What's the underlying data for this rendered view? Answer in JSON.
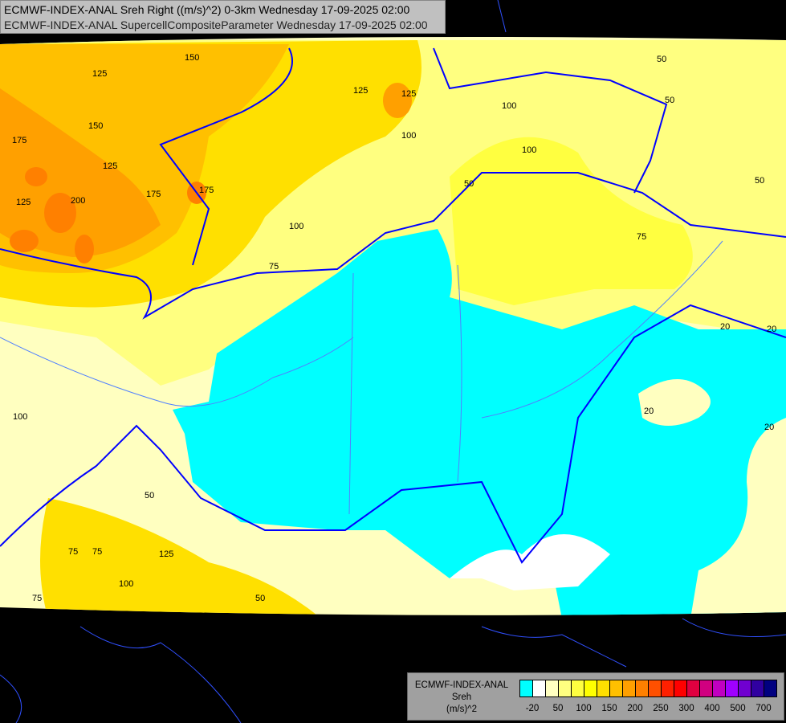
{
  "header": {
    "line1": "ECMWF-INDEX-ANAL Sreh Right ((m/s)^2) 0-3km Wednesday 17-09-2025 02:00",
    "line2": "ECMWF-INDEX-ANAL SupercellCompositeParameter Wednesday 17-09-2025 02:00"
  },
  "legend": {
    "model": "ECMWF-INDEX-ANAL",
    "parameter": "Sreh",
    "unit": "(m/s)^2",
    "colors": [
      "#00ffff",
      "#ffffff",
      "#ffffc0",
      "#ffff80",
      "#ffff40",
      "#ffff00",
      "#ffe000",
      "#ffc000",
      "#ffa000",
      "#ff8000",
      "#ff5000",
      "#ff2000",
      "#ff0000",
      "#e00040",
      "#d00080",
      "#c000c0",
      "#a000ff",
      "#7000d0",
      "#3000a0",
      "#000080"
    ],
    "tick_labels": [
      "-20",
      "50",
      "100",
      "150",
      "200",
      "250",
      "300",
      "400",
      "500",
      "700"
    ]
  },
  "map": {
    "border_color": "#0000ff",
    "river_color": "#5080ff",
    "contour_labels": [
      "150",
      "125",
      "125",
      "150",
      "175",
      "125",
      "200",
      "175",
      "175",
      "125",
      "100",
      "125",
      "100",
      "75",
      "100",
      "50",
      "50",
      "50",
      "50",
      "100",
      "75",
      "75",
      "100",
      "50",
      "125",
      "100",
      "75",
      "75",
      "50",
      "20",
      "20",
      "20",
      "20",
      "20"
    ]
  }
}
